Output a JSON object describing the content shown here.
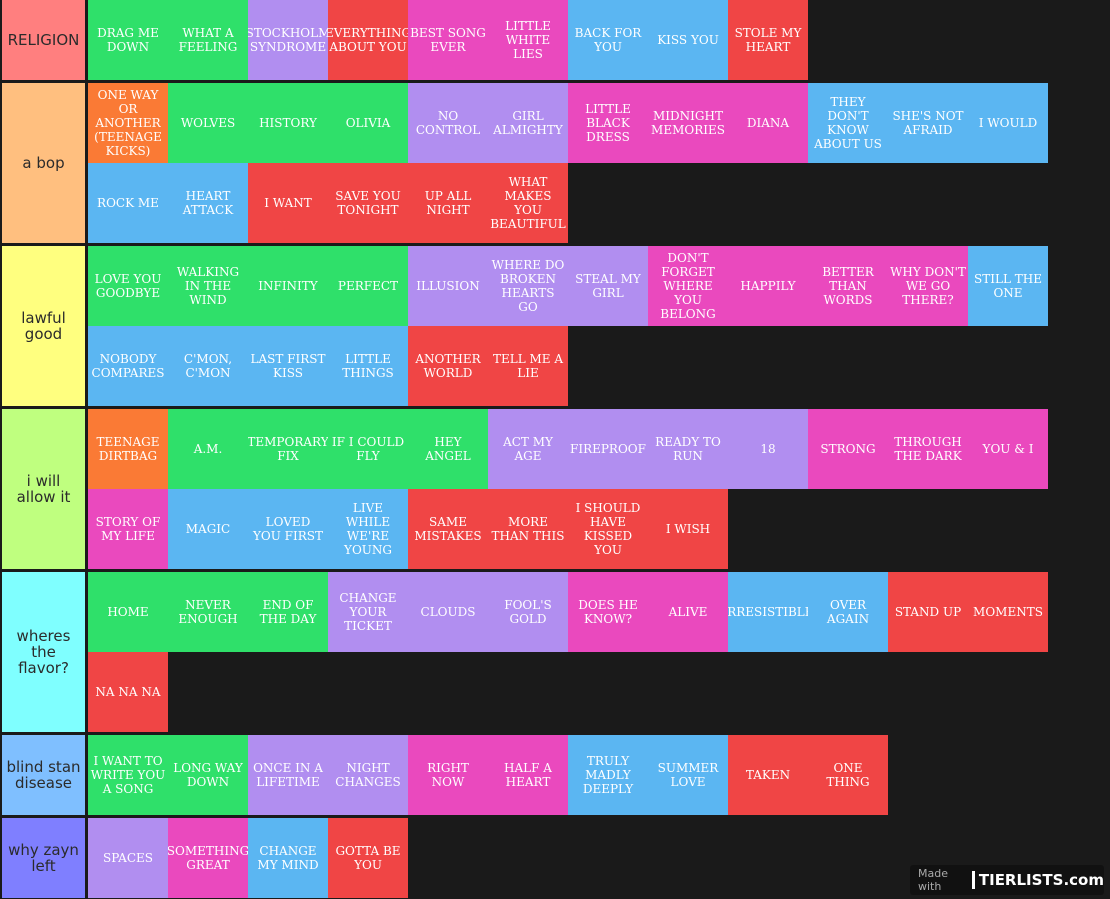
{
  "tiers": [
    {
      "label": "RELIGION",
      "color": "#ff7f7f",
      "rows": 1,
      "items": [
        {
          "t": "DRAG ME DOWN",
          "c": "green"
        },
        {
          "t": "WHAT A FEELING",
          "c": "green"
        },
        {
          "t": "STOCKHOLM SYNDROME",
          "c": "lav"
        },
        {
          "t": "EVERYTHING ABOUT YOU",
          "c": "red"
        },
        {
          "t": "BEST SONG EVER",
          "c": "pink"
        },
        {
          "t": "LITTLE WHITE LIES",
          "c": "pink"
        },
        {
          "t": "BACK FOR YOU",
          "c": "blue"
        },
        {
          "t": "KISS YOU",
          "c": "blue"
        },
        {
          "t": "STOLE MY HEART",
          "c": "red"
        }
      ]
    },
    {
      "label": "a bop",
      "color": "#ffbf7f",
      "rows": 2,
      "items": [
        {
          "t": "ONE WAY OR ANOTHER (TEENAGE KICKS)",
          "c": "orange"
        },
        {
          "t": "WOLVES",
          "c": "green"
        },
        {
          "t": "HISTORY",
          "c": "green"
        },
        {
          "t": "OLIVIA",
          "c": "green"
        },
        {
          "t": "NO CONTROL",
          "c": "lav"
        },
        {
          "t": "GIRL ALMIGHTY",
          "c": "lav"
        },
        {
          "t": "LITTLE BLACK DRESS",
          "c": "pink"
        },
        {
          "t": "MIDNIGHT MEMORIES",
          "c": "pink"
        },
        {
          "t": "DIANA",
          "c": "pink"
        },
        {
          "t": "THEY DON'T KNOW ABOUT US",
          "c": "blue"
        },
        {
          "t": "SHE'S NOT AFRAID",
          "c": "blue"
        },
        {
          "t": "I WOULD",
          "c": "blue"
        },
        {
          "t": "ROCK ME",
          "c": "blue"
        },
        {
          "t": "HEART ATTACK",
          "c": "blue"
        },
        {
          "t": "I WANT",
          "c": "red"
        },
        {
          "t": "SAVE YOU TONIGHT",
          "c": "red"
        },
        {
          "t": "UP ALL NIGHT",
          "c": "red"
        },
        {
          "t": "WHAT MAKES YOU BEAUTIFUL",
          "c": "red"
        }
      ]
    },
    {
      "label": "lawful good",
      "color": "#ffff7f",
      "rows": 2,
      "items": [
        {
          "t": "LOVE YOU GOODBYE",
          "c": "green"
        },
        {
          "t": "WALKING IN THE WIND",
          "c": "green"
        },
        {
          "t": "INFINITY",
          "c": "green"
        },
        {
          "t": "PERFECT",
          "c": "green"
        },
        {
          "t": "ILLUSION",
          "c": "lav"
        },
        {
          "t": "WHERE DO BROKEN HEARTS GO",
          "c": "lav"
        },
        {
          "t": "STEAL MY GIRL",
          "c": "lav"
        },
        {
          "t": "DON'T FORGET WHERE YOU BELONG",
          "c": "pink"
        },
        {
          "t": "HAPPILY",
          "c": "pink"
        },
        {
          "t": "BETTER THAN WORDS",
          "c": "pink"
        },
        {
          "t": "WHY DON'T WE GO THERE?",
          "c": "pink"
        },
        {
          "t": "STILL THE ONE",
          "c": "blue"
        },
        {
          "t": "NOBODY COMPARES",
          "c": "blue"
        },
        {
          "t": "C'MON, C'MON",
          "c": "blue"
        },
        {
          "t": "LAST FIRST KISS",
          "c": "blue"
        },
        {
          "t": "LITTLE THINGS",
          "c": "blue"
        },
        {
          "t": "ANOTHER WORLD",
          "c": "red"
        },
        {
          "t": "TELL ME A LIE",
          "c": "red"
        }
      ]
    },
    {
      "label": "i will allow it",
      "color": "#bfff7f",
      "rows": 2,
      "items": [
        {
          "t": "TEENAGE DIRTBAG",
          "c": "orange"
        },
        {
          "t": "A.M.",
          "c": "green"
        },
        {
          "t": "TEMPORARY FIX",
          "c": "green"
        },
        {
          "t": "IF I COULD FLY",
          "c": "green"
        },
        {
          "t": "HEY ANGEL",
          "c": "green"
        },
        {
          "t": "ACT MY AGE",
          "c": "lav"
        },
        {
          "t": "FIREPROOF",
          "c": "lav"
        },
        {
          "t": "READY TO RUN",
          "c": "lav"
        },
        {
          "t": "18",
          "c": "lav"
        },
        {
          "t": "STRONG",
          "c": "pink"
        },
        {
          "t": "THROUGH THE DARK",
          "c": "pink"
        },
        {
          "t": "YOU & I",
          "c": "pink"
        },
        {
          "t": "STORY OF MY LIFE",
          "c": "pink"
        },
        {
          "t": "MAGIC",
          "c": "blue"
        },
        {
          "t": "LOVED YOU FIRST",
          "c": "blue"
        },
        {
          "t": "LIVE WHILE WE'RE YOUNG",
          "c": "blue"
        },
        {
          "t": "SAME MISTAKES",
          "c": "red"
        },
        {
          "t": "MORE THAN THIS",
          "c": "red"
        },
        {
          "t": "I SHOULD HAVE KISSED YOU",
          "c": "red"
        },
        {
          "t": "I WISH",
          "c": "red"
        }
      ]
    },
    {
      "label": "wheres the flavor?",
      "color": "#7fffff",
      "rows": 2,
      "items": [
        {
          "t": "HOME",
          "c": "green"
        },
        {
          "t": "NEVER ENOUGH",
          "c": "green"
        },
        {
          "t": "END OF THE DAY",
          "c": "green"
        },
        {
          "t": "CHANGE YOUR TICKET",
          "c": "lav"
        },
        {
          "t": "CLOUDS",
          "c": "lav"
        },
        {
          "t": "FOOL'S GOLD",
          "c": "lav"
        },
        {
          "t": "DOES HE KNOW?",
          "c": "pink"
        },
        {
          "t": "ALIVE",
          "c": "pink"
        },
        {
          "t": "IRRESISTIBLE",
          "c": "blue"
        },
        {
          "t": "OVER AGAIN",
          "c": "blue"
        },
        {
          "t": "STAND UP",
          "c": "red"
        },
        {
          "t": "MOMENTS",
          "c": "red"
        },
        {
          "t": "NA NA NA",
          "c": "red"
        }
      ]
    },
    {
      "label": "blind stan disease",
      "color": "#7fbfff",
      "rows": 1,
      "items": [
        {
          "t": "I WANT TO WRITE YOU A SONG",
          "c": "green"
        },
        {
          "t": "LONG WAY DOWN",
          "c": "green"
        },
        {
          "t": "ONCE IN A LIFETIME",
          "c": "lav"
        },
        {
          "t": "NIGHT CHANGES",
          "c": "lav"
        },
        {
          "t": "RIGHT NOW",
          "c": "pink"
        },
        {
          "t": "HALF A HEART",
          "c": "pink"
        },
        {
          "t": "TRULY MADLY DEEPLY",
          "c": "blue"
        },
        {
          "t": "SUMMER LOVE",
          "c": "blue"
        },
        {
          "t": "TAKEN",
          "c": "red"
        },
        {
          "t": "ONE THING",
          "c": "red"
        }
      ]
    },
    {
      "label": "why zayn left",
      "color": "#7f7fff",
      "rows": 1,
      "items": [
        {
          "t": "SPACES",
          "c": "lav"
        },
        {
          "t": "SOMETHING GREAT",
          "c": "pink"
        },
        {
          "t": "CHANGE MY MIND",
          "c": "blue"
        },
        {
          "t": "GOTTA BE YOU",
          "c": "red"
        }
      ]
    }
  ],
  "watermark": {
    "prefix": "Made with",
    "brand": "TIERLISTS.com"
  }
}
